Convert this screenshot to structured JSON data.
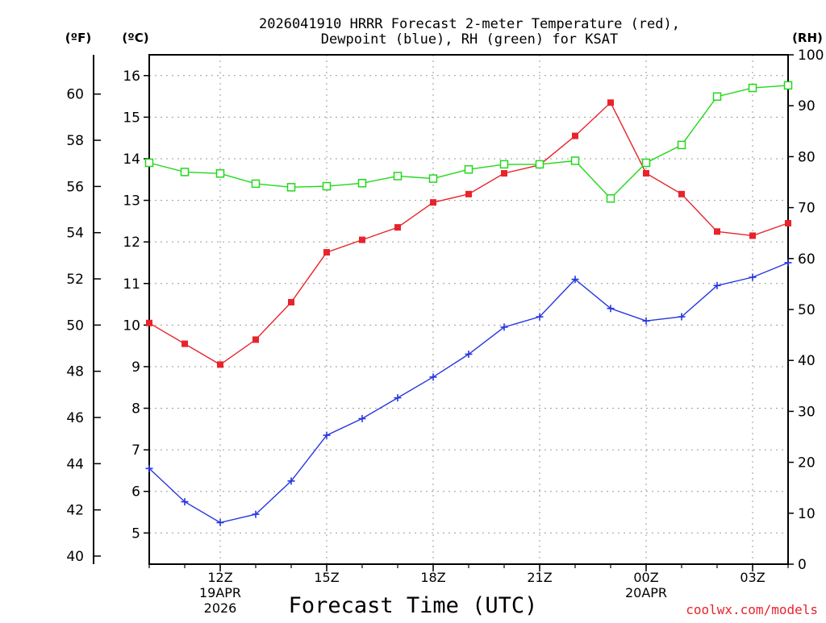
{
  "chart_data": {
    "type": "line",
    "title_line1": "2026041910 HRRR Forecast 2-meter Temperature (red),",
    "title_line2": "Dewpoint (blue), RH (green) for KSAT",
    "xlabel": "Forecast Time (UTC)",
    "unit_f": "(ºF)",
    "unit_c": "(ºC)",
    "unit_rh": "(RH)",
    "watermark": "coolwx.com/models",
    "hours": [
      10,
      11,
      12,
      13,
      14,
      15,
      16,
      17,
      18,
      19,
      20,
      21,
      22,
      23,
      24,
      25,
      26,
      27,
      28
    ],
    "x_range": [
      10,
      28
    ],
    "c_range": [
      4.25,
      16.5
    ],
    "f_range": [
      39.65,
      61.7
    ],
    "rh_range": [
      0,
      100
    ],
    "x_ticks": [
      {
        "hour": 12,
        "label": "12Z",
        "sub1": "19APR",
        "sub2": "2026"
      },
      {
        "hour": 15,
        "label": "15Z",
        "sub1": "",
        "sub2": ""
      },
      {
        "hour": 18,
        "label": "18Z",
        "sub1": "",
        "sub2": ""
      },
      {
        "hour": 21,
        "label": "21Z",
        "sub1": "",
        "sub2": ""
      },
      {
        "hour": 24,
        "label": "00Z",
        "sub1": "20APR",
        "sub2": ""
      },
      {
        "hour": 27,
        "label": "03Z",
        "sub1": "",
        "sub2": ""
      }
    ],
    "c_ticks": [
      5,
      6,
      7,
      8,
      9,
      10,
      11,
      12,
      13,
      14,
      15,
      16
    ],
    "f_ticks": [
      40,
      42,
      44,
      46,
      48,
      50,
      52,
      54,
      56,
      58,
      60
    ],
    "rh_ticks": [
      0,
      10,
      20,
      30,
      40,
      50,
      60,
      70,
      80,
      90,
      100
    ],
    "series": [
      {
        "name": "Temperature",
        "unit": "C",
        "color": "#e8232b",
        "marker": "filled-square",
        "values": [
          10.05,
          9.55,
          9.05,
          9.65,
          10.55,
          11.75,
          12.05,
          12.35,
          12.95,
          13.15,
          13.65,
          13.85,
          14.55,
          15.35,
          13.65,
          13.15,
          12.25,
          12.15,
          12.45
        ]
      },
      {
        "name": "Dewpoint",
        "unit": "C",
        "color": "#2636e0",
        "marker": "plus",
        "values": [
          6.55,
          5.75,
          5.25,
          5.45,
          6.25,
          7.35,
          7.75,
          8.25,
          8.75,
          9.3,
          9.95,
          10.2,
          11.1,
          10.4,
          10.1,
          10.2,
          10.95,
          11.15,
          11.5
        ]
      },
      {
        "name": "RH",
        "unit": "%",
        "color": "#22d81c",
        "marker": "open-square",
        "values": [
          78.8,
          77.0,
          76.7,
          74.7,
          74.0,
          74.2,
          74.8,
          76.2,
          75.7,
          77.5,
          78.5,
          78.5,
          79.2,
          71.8,
          78.8,
          82.3,
          91.8,
          93.5,
          94.0
        ]
      }
    ]
  }
}
